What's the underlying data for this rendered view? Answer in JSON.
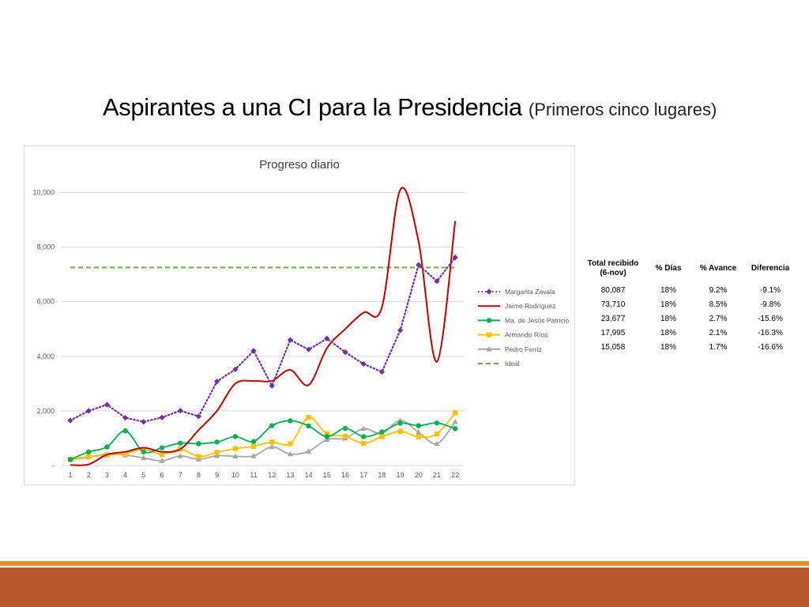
{
  "slide": {
    "title": "Aspirantes a una CI para la Presidencia",
    "subtitle": "(Primeros cinco lugares)"
  },
  "chart_data": {
    "type": "line",
    "title": "Progreso diario",
    "xlabel": "",
    "ylabel": "",
    "x": [
      1,
      2,
      3,
      4,
      5,
      6,
      7,
      8,
      9,
      10,
      11,
      12,
      13,
      14,
      15,
      16,
      17,
      18,
      19,
      20,
      21,
      22
    ],
    "ylim": [
      0,
      11000
    ],
    "yticks": [
      0,
      2000,
      4000,
      6000,
      8000,
      10000
    ],
    "ytick_labels": [
      "-",
      "2,000",
      "4,000",
      "6,000",
      "8,000",
      "10,000"
    ],
    "grid": true,
    "legend_position": "right",
    "series": [
      {
        "name": "Margarita Zavala",
        "color": "#7030a0",
        "style": "dotted",
        "marker": "diamond",
        "smooth": false,
        "values": [
          1650,
          2000,
          2230,
          1750,
          1600,
          1760,
          2010,
          1800,
          3080,
          3520,
          4200,
          2920,
          4600,
          4250,
          4650,
          4150,
          3720,
          3430,
          4950,
          7350,
          6750,
          7620
        ]
      },
      {
        "name": "Jaime Rodríguez",
        "color": "#c00000",
        "style": "solid",
        "marker": "none",
        "smooth": true,
        "values": [
          20,
          40,
          400,
          500,
          650,
          500,
          600,
          1300,
          2000,
          3000,
          3100,
          3100,
          3500,
          2950,
          4300,
          5000,
          5600,
          5800,
          10100,
          8200,
          3800,
          8950
        ]
      },
      {
        "name": "Ma. de Jesús Patricio",
        "color": "#00b050",
        "style": "solid",
        "marker": "circle",
        "smooth": true,
        "values": [
          220,
          500,
          680,
          1270,
          500,
          650,
          820,
          800,
          860,
          1060,
          880,
          1460,
          1640,
          1450,
          1060,
          1360,
          1060,
          1230,
          1550,
          1460,
          1560,
          1350
        ]
      },
      {
        "name": "Armando Ríos",
        "color": "#ffc000",
        "style": "solid",
        "marker": "square",
        "smooth": true,
        "values": [
          220,
          330,
          380,
          440,
          580,
          410,
          600,
          330,
          480,
          620,
          700,
          860,
          800,
          1760,
          1150,
          1070,
          810,
          1060,
          1250,
          1050,
          1160,
          1930
        ]
      },
      {
        "name": "Pedro Ferriz",
        "color": "#a6a6a6",
        "style": "solid",
        "marker": "triangle",
        "smooth": true,
        "values": [
          220,
          300,
          420,
          380,
          280,
          170,
          350,
          230,
          360,
          340,
          350,
          680,
          420,
          520,
          950,
          1000,
          1350,
          1180,
          1650,
          1220,
          800,
          1600
        ]
      },
      {
        "name": "Ideal",
        "color": "#70ad47",
        "style": "dashed",
        "marker": "none",
        "smooth": false,
        "values": [
          7250,
          7250,
          7250,
          7250,
          7250,
          7250,
          7250,
          7250,
          7250,
          7250,
          7250,
          7250,
          7250,
          7250,
          7250,
          7250,
          7250,
          7250,
          7250,
          7250,
          7250,
          7250
        ]
      }
    ]
  },
  "table": {
    "headers": [
      "Total recibido (6-nov)",
      "% Días",
      "% Avance",
      "Diferencia"
    ],
    "rows": [
      [
        "80,087",
        "18%",
        "9.2%",
        "-9.1%"
      ],
      [
        "73,710",
        "18%",
        "8.5%",
        "-9.8%"
      ],
      [
        "23,677",
        "18%",
        "2.7%",
        "-15.6%"
      ],
      [
        "17,995",
        "18%",
        "2.1%",
        "-16.3%"
      ],
      [
        "15,058",
        "18%",
        "1.7%",
        "-16.6%"
      ]
    ]
  }
}
